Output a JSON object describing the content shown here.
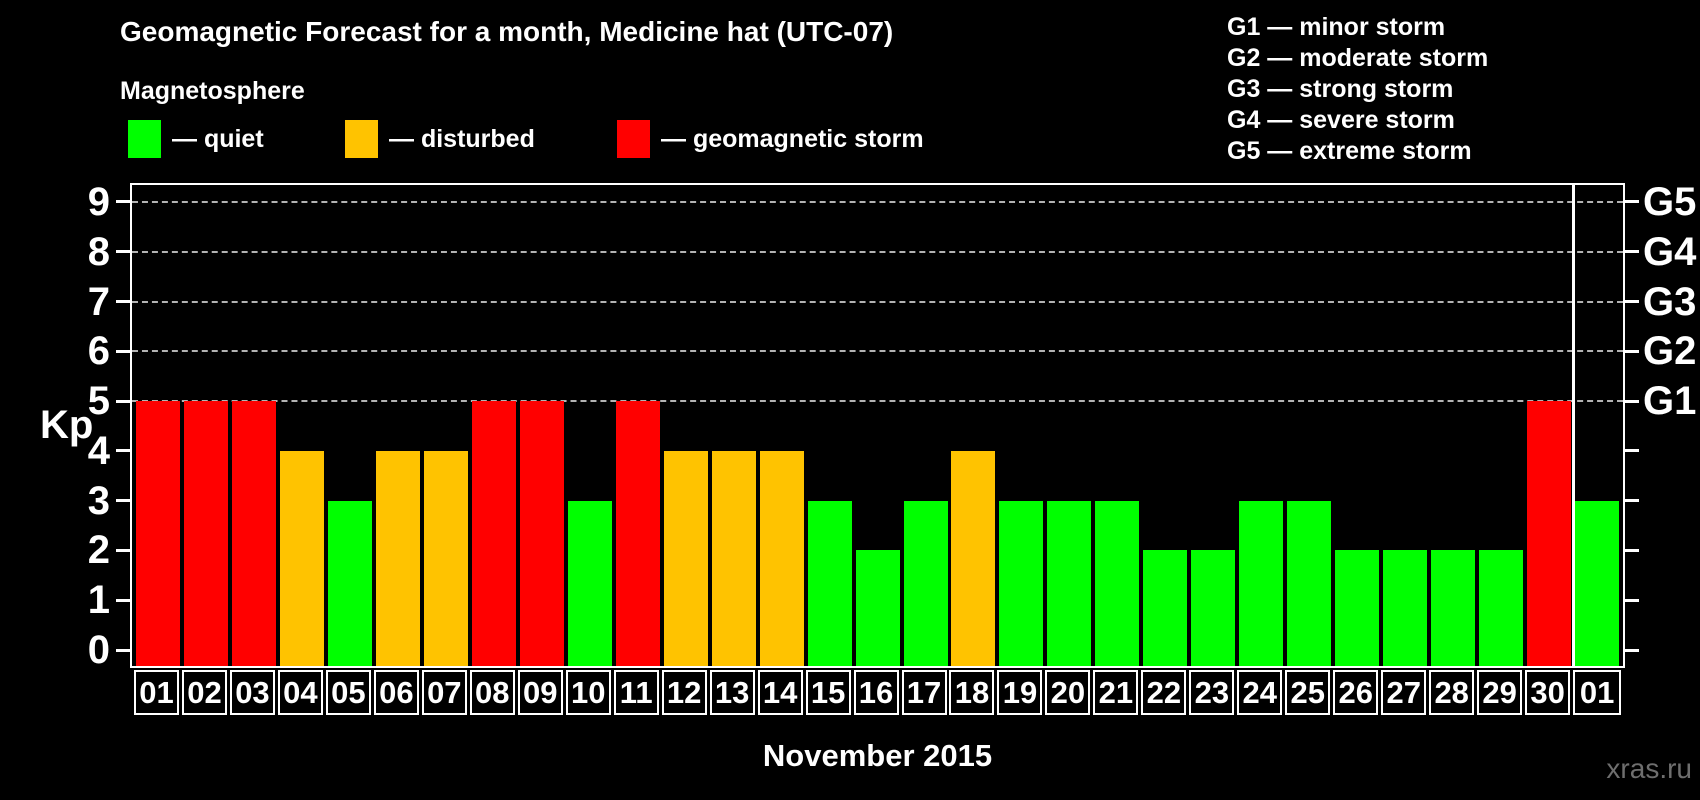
{
  "title": "Geomagnetic Forecast for a month, Medicine hat (UTC-07)",
  "subtitle": "Magnetosphere",
  "legend": {
    "items": [
      {
        "state": "quiet",
        "label": "— quiet",
        "color": "#00ff00"
      },
      {
        "state": "disturbed",
        "label": "— disturbed",
        "color": "#ffc300"
      },
      {
        "state": "storm",
        "label": "— geomagnetic storm",
        "color": "#ff0000"
      }
    ]
  },
  "g_legend": [
    "G1 — minor storm",
    "G2 — moderate storm",
    "G3 — strong storm",
    "G4 — severe storm",
    "G5 — extreme storm"
  ],
  "watermark": "xras.ru",
  "chart_data": {
    "type": "bar",
    "title": "Geomagnetic Forecast for a month, Medicine hat (UTC-07)",
    "x_caption": "November 2015",
    "ylabel": "Kp",
    "ylim": [
      0,
      9
    ],
    "y_ticks": [
      0,
      1,
      2,
      3,
      4,
      5,
      6,
      7,
      8,
      9
    ],
    "gridlines_at_kp": [
      5,
      6,
      7,
      8,
      9
    ],
    "grid_style": "dashed",
    "right_axis": [
      {
        "label": "G1",
        "kp": 5
      },
      {
        "label": "G2",
        "kp": 6
      },
      {
        "label": "G3",
        "kp": 7
      },
      {
        "label": "G4",
        "kp": 8
      },
      {
        "label": "G5",
        "kp": 9
      }
    ],
    "days": [
      "01",
      "02",
      "03",
      "04",
      "05",
      "06",
      "07",
      "08",
      "09",
      "10",
      "11",
      "12",
      "13",
      "14",
      "15",
      "16",
      "17",
      "18",
      "19",
      "20",
      "21",
      "22",
      "23",
      "24",
      "25",
      "26",
      "27",
      "28",
      "29",
      "30",
      "01"
    ],
    "kp_values": [
      5,
      5,
      5,
      4,
      3,
      4,
      4,
      5,
      5,
      3,
      5,
      4,
      4,
      4,
      3,
      2,
      3,
      4,
      3,
      3,
      3,
      2,
      2,
      3,
      3,
      2,
      2,
      2,
      2,
      5,
      3
    ],
    "states": [
      "storm",
      "storm",
      "storm",
      "disturbed",
      "quiet",
      "disturbed",
      "disturbed",
      "storm",
      "storm",
      "quiet",
      "storm",
      "disturbed",
      "disturbed",
      "disturbed",
      "quiet",
      "quiet",
      "quiet",
      "disturbed",
      "quiet",
      "quiet",
      "quiet",
      "quiet",
      "quiet",
      "quiet",
      "quiet",
      "quiet",
      "quiet",
      "quiet",
      "quiet",
      "storm",
      "quiet"
    ],
    "state_colors": {
      "quiet": "#00ff00",
      "disturbed": "#ffc300",
      "storm": "#ff0000"
    },
    "month_separator_after_index": 29
  }
}
